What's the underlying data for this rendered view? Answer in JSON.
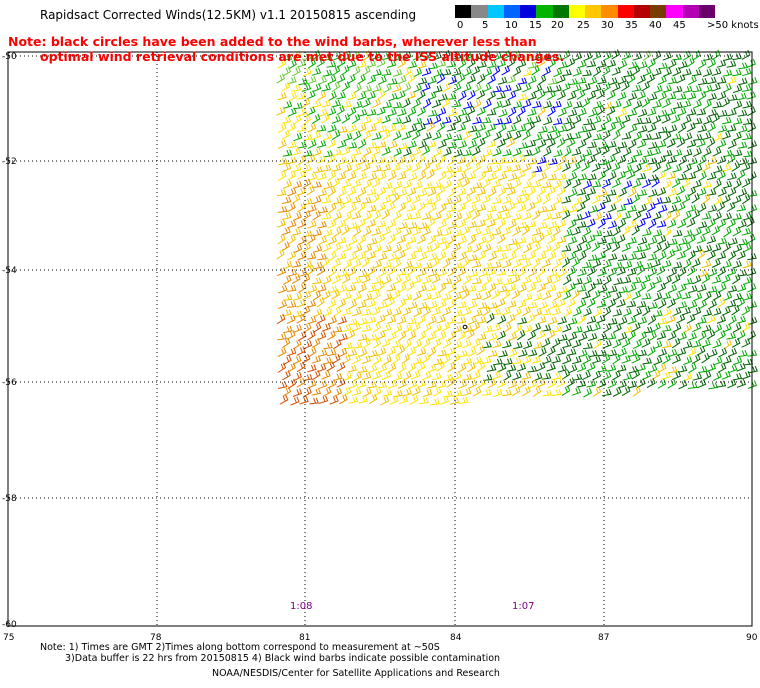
{
  "title": "Rapidsact Corrected Winds(12.5KM) v1.1 20150815 ascending",
  "note_line1": "Note: black circles have been added to the wind barbs, wherever less than",
  "note_line2": "optimal wind retrieval conditions are met due to the ISS altitude changes.",
  "colorbar": {
    "colors": [
      "#000000",
      "#888888",
      "#00c8ff",
      "#0064ff",
      "#0000dc",
      "#00b400",
      "#007800",
      "#ffff00",
      "#ffc800",
      "#ff8c00",
      "#ff0000",
      "#b40000",
      "#783c00",
      "#ff00ff",
      "#b400b4",
      "#6a006a"
    ],
    "labels": [
      "0",
      "5",
      "10",
      "15",
      "20",
      "25",
      "30",
      "35",
      "40",
      "45",
      ">50 knots"
    ]
  },
  "map": {
    "lat_labels": [
      "-50",
      "-52",
      "-54",
      "-56",
      "-58",
      "-60"
    ],
    "lon_labels": [
      "75",
      "78",
      "81",
      "84",
      "87",
      "90"
    ],
    "time_labels": [
      "1:08",
      "1:07"
    ],
    "barb_colors": {
      "blue": "#0000ff",
      "dark_green": "#006400",
      "green": "#00aa00",
      "light_green": "#66cc33",
      "yellow": "#ffe400",
      "gold": "#f2c200",
      "orange": "#e88a00",
      "red_orange": "#d45000",
      "contamination": "#000000"
    }
  },
  "footnote_line1": "Note: 1) Times are GMT 2)Times along bottom correspond to measurement at ~50S",
  "footnote_line2": "3)Data buffer is 22 hrs from 20150815 4) Black wind barbs indicate possible contamination",
  "credit": "NOAA/NESDIS/Center for Satellite Applications and Research"
}
